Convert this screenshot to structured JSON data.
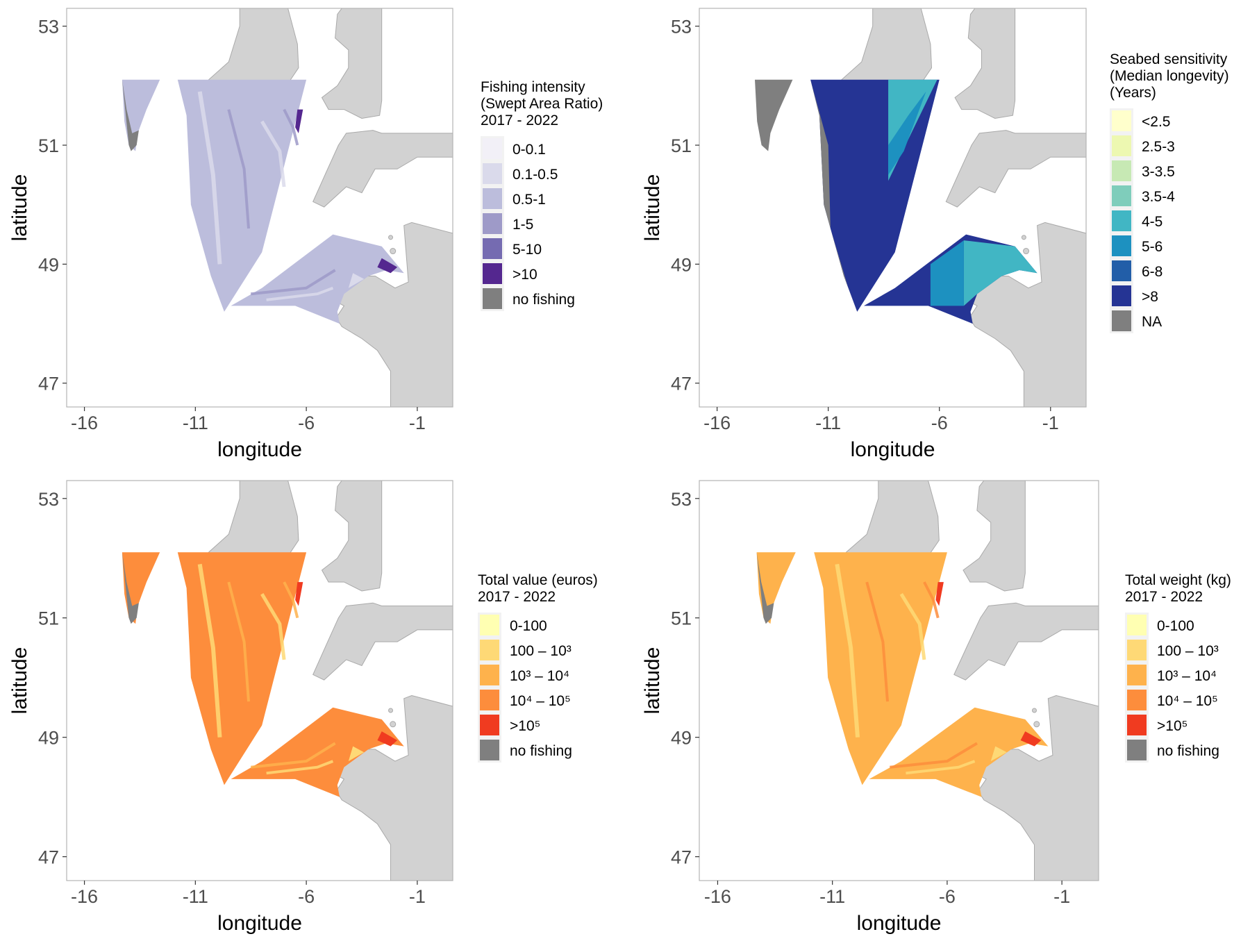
{
  "axes": {
    "x_label": "longitude",
    "y_label": "latitude",
    "x_ticks": [
      "-16",
      "-11",
      "-6",
      "-1"
    ],
    "y_ticks": [
      "53",
      "51",
      "49",
      "47"
    ],
    "x_range": [
      -16.8,
      0.6
    ],
    "y_range": [
      46.6,
      53.3
    ]
  },
  "colors": {
    "land": "#d2d2d2",
    "land_edge": "#a9a9a9",
    "no_data": "#7f7f7f",
    "panel_border": "#b3b3b3",
    "legend_key_bg": "#f2f2f2"
  },
  "panels": [
    {
      "id": "fishing-intensity",
      "legend": {
        "title_lines": [
          "Fishing intensity",
          "(Swept Area Ratio)",
          " 2017 - 2022"
        ],
        "items": [
          {
            "label": "0-0.1",
            "color": "#f2f0f7"
          },
          {
            "label": "0.1-0.5",
            "color": "#dadaeb"
          },
          {
            "label": "0.5-1",
            "color": "#bcbddc"
          },
          {
            "label": "1-5",
            "color": "#9e9ac8"
          },
          {
            "label": "5-10",
            "color": "#756bb1"
          },
          {
            "label": ">10",
            "color": "#54278f"
          },
          {
            "label": "no fishing",
            "color": "#7f7f7f"
          }
        ]
      },
      "fill": {
        "west": "#bcbddc",
        "central": "#bcbddc",
        "south": "#bcbddc",
        "accent": "#54278f",
        "mid": "#9e9ac8",
        "light": "#dadaeb"
      }
    },
    {
      "id": "seabed-sensitivity",
      "legend": {
        "title_lines": [
          "Seabed sensitivity",
          "(Median longevity)",
          "(Years)"
        ],
        "items": [
          {
            "label": "<2.5",
            "color": "#ffffcc"
          },
          {
            "label": "2.5-3",
            "color": "#edf8b1"
          },
          {
            "label": "3-3.5",
            "color": "#c7e9b4"
          },
          {
            "label": "3.5-4",
            "color": "#7fcdbb"
          },
          {
            "label": "4-5",
            "color": "#41b6c4"
          },
          {
            "label": "5-6",
            "color": "#1d91c0"
          },
          {
            "label": "6-8",
            "color": "#225ea8"
          },
          {
            "label": ">8",
            "color": "#253494"
          },
          {
            "label": "NA",
            "color": "#7f7f7f"
          }
        ]
      },
      "fill": {
        "west": "#7f7f7f",
        "central": "#253494",
        "south": "#253494",
        "accent": "#41b6c4",
        "mid": "#1d91c0",
        "light": "#7fcdbb"
      }
    },
    {
      "id": "total-value",
      "legend": {
        "title_lines": [
          "Total value (euros)",
          " 2017 - 2022"
        ],
        "items": [
          {
            "label": "0-100",
            "color": "#ffffb2"
          },
          {
            "label": "100 – 10³",
            "color": "#fed976"
          },
          {
            "label": "10³ – 10⁴",
            "color": "#feb24c"
          },
          {
            "label": "10⁴ – 10⁵",
            "color": "#fd8d3c"
          },
          {
            "label": ">10⁵",
            "color": "#f03b20"
          },
          {
            "label": "no fishing",
            "color": "#7f7f7f"
          }
        ]
      },
      "fill": {
        "west": "#fd8d3c",
        "central": "#fd8d3c",
        "south": "#fd8d3c",
        "accent": "#f03b20",
        "mid": "#feb24c",
        "light": "#fed976"
      }
    },
    {
      "id": "total-weight",
      "legend": {
        "title_lines": [
          "Total weight (kg)",
          " 2017 - 2022"
        ],
        "items": [
          {
            "label": "0-100",
            "color": "#ffffb2"
          },
          {
            "label": "100 – 10³",
            "color": "#fed976"
          },
          {
            "label": "10³ – 10⁴",
            "color": "#feb24c"
          },
          {
            "label": "10⁴ – 10⁵",
            "color": "#fd8d3c"
          },
          {
            "label": ">10⁵",
            "color": "#f03b20"
          },
          {
            "label": "no fishing",
            "color": "#7f7f7f"
          }
        ]
      },
      "fill": {
        "west": "#feb24c",
        "central": "#feb24c",
        "south": "#feb24c",
        "accent": "#f03b20",
        "mid": "#fd8d3c",
        "light": "#fed976"
      }
    }
  ]
}
